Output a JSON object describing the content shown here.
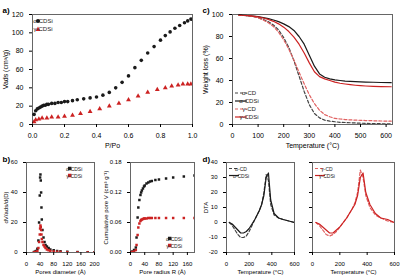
{
  "chart_data": [
    {
      "type": "scatter",
      "title": "a)",
      "xlabel": "P/Po",
      "ylabel": "Vads (cm³/g)",
      "xlim": [
        0,
        1
      ],
      "ylim": [
        0,
        120
      ],
      "xticks": [
        {
          "value": 0,
          "label": "0.0"
        },
        0.2,
        0.4,
        0.6,
        0.8,
        {
          "value": 1,
          "label": "1.0"
        }
      ],
      "yticks": [
        0,
        20,
        40,
        60,
        80,
        100,
        120
      ],
      "legend": "upper left",
      "series": [
        {
          "name": "α-CDSi",
          "color": "#1a1a1a",
          "marker": "circle",
          "x": [
            0.01,
            0.02,
            0.03,
            0.04,
            0.05,
            0.06,
            0.07,
            0.08,
            0.09,
            0.1,
            0.12,
            0.14,
            0.16,
            0.18,
            0.2,
            0.22,
            0.25,
            0.28,
            0.32,
            0.36,
            0.4,
            0.44,
            0.48,
            0.52,
            0.56,
            0.6,
            0.64,
            0.68,
            0.72,
            0.76,
            0.8,
            0.83,
            0.86,
            0.89,
            0.92,
            0.95,
            0.97,
            0.99
          ],
          "values": [
            11,
            15,
            17,
            18,
            19,
            20,
            21,
            21,
            22,
            22,
            23,
            23,
            24,
            24,
            25,
            25,
            26,
            27,
            28,
            29,
            30,
            32,
            35,
            40,
            46,
            53,
            62,
            70,
            78,
            85,
            92,
            97,
            101,
            105,
            108,
            111,
            113,
            115
          ]
        },
        {
          "name": "γ-CDSi",
          "color": "#cc2222",
          "marker": "triangle",
          "x": [
            0.01,
            0.02,
            0.04,
            0.06,
            0.09,
            0.12,
            0.16,
            0.2,
            0.25,
            0.3,
            0.36,
            0.42,
            0.48,
            0.54,
            0.6,
            0.66,
            0.72,
            0.78,
            0.83,
            0.87,
            0.91,
            0.94,
            0.97,
            0.99
          ],
          "values": [
            3,
            5,
            6,
            7,
            7,
            8,
            8,
            9,
            10,
            12,
            14,
            17,
            20,
            23,
            27,
            31,
            35,
            38,
            40,
            42,
            43,
            44,
            44,
            44
          ]
        }
      ]
    },
    {
      "type": "scatter",
      "title": "b)",
      "xlabel": "Pores diameter (Å)",
      "ylabel": "dV/ads/d(D)",
      "xlim": [
        0,
        200
      ],
      "ylim": [
        0,
        60
      ],
      "xticks": [
        0,
        40,
        80,
        120,
        160,
        200
      ],
      "yticks": [
        0,
        20,
        40,
        60
      ],
      "legend": "upper right",
      "series": [
        {
          "name": "α-CDSi",
          "color": "#1a1a1a",
          "marker": "square",
          "x": [
            22,
            25,
            28,
            32,
            35,
            37,
            39,
            40,
            41,
            42,
            43,
            44,
            45,
            47,
            50,
            53,
            56,
            60,
            65,
            70,
            80,
            90,
            100,
            120,
            150,
            180,
            200
          ],
          "values": [
            0.3,
            0.5,
            1.0,
            2.5,
            8,
            20,
            38,
            50,
            52,
            48,
            40,
            30,
            22,
            15,
            10,
            7,
            5,
            4,
            3,
            2,
            1.5,
            1,
            0.8,
            0.5,
            0.3,
            0.2,
            0.1
          ]
        },
        {
          "name": "γ-CDSi",
          "color": "#cc2222",
          "marker": "square",
          "x": [
            22,
            25,
            28,
            32,
            35,
            37,
            39,
            40,
            41,
            42,
            43,
            44,
            45,
            47,
            50,
            53,
            56,
            60,
            65,
            70,
            80,
            90,
            100,
            120,
            150,
            180,
            200
          ],
          "values": [
            0.1,
            0.2,
            0.4,
            1.0,
            3,
            7,
            12,
            16,
            18,
            17,
            15,
            12,
            9,
            7,
            5,
            4,
            3,
            2,
            1.5,
            1,
            0.7,
            0.5,
            0.4,
            0.2,
            0.1,
            0.05,
            0.05
          ]
        }
      ]
    },
    {
      "type": "scatter",
      "xlabel": "Pore radius R (Å)",
      "ylabel": "Cumulative pore V (cm³ g⁻¹)",
      "xlim": [
        0,
        180
      ],
      "ylim": [
        0,
        0.18
      ],
      "xticks": [
        0,
        40,
        80,
        120,
        160
      ],
      "yticks": [
        {
          "value": 0,
          "label": "0.00"
        },
        0.06,
        0.12,
        0.18
      ],
      "legend": "lower right",
      "series": [
        {
          "name": "α-CDSi",
          "color": "#1a1a1a",
          "marker": "square",
          "x": [
            0,
            5,
            10,
            15,
            17,
            20,
            22,
            25,
            28,
            30,
            32,
            35,
            38,
            40,
            45,
            50,
            55,
            60,
            70,
            80,
            100,
            120,
            150,
            180
          ],
          "values": [
            0,
            0.002,
            0.005,
            0.01,
            0.03,
            0.07,
            0.09,
            0.105,
            0.115,
            0.12,
            0.124,
            0.128,
            0.132,
            0.134,
            0.138,
            0.14,
            0.142,
            0.143,
            0.145,
            0.146,
            0.148,
            0.15,
            0.152,
            0.154
          ]
        },
        {
          "name": "γ-CDSi",
          "color": "#cc2222",
          "marker": "square",
          "x": [
            0,
            5,
            10,
            15,
            17,
            20,
            22,
            25,
            28,
            30,
            32,
            35,
            38,
            40,
            45,
            50,
            55,
            60,
            70,
            80,
            100,
            120,
            150,
            180
          ],
          "values": [
            0,
            0.001,
            0.002,
            0.005,
            0.015,
            0.035,
            0.05,
            0.058,
            0.063,
            0.065,
            0.066,
            0.067,
            0.068,
            0.068,
            0.068,
            0.069,
            0.069,
            0.069,
            0.069,
            0.069,
            0.069,
            0.069,
            0.069,
            0.069
          ]
        }
      ]
    },
    {
      "type": "line",
      "title": "c)",
      "xlabel": "Temperature (°C)",
      "ylabel": "Weight loss (%)",
      "xlim": [
        0,
        625
      ],
      "ylim": [
        0,
        100
      ],
      "xticks": [
        0,
        100,
        200,
        300,
        400,
        500,
        600
      ],
      "yticks": [
        0,
        20,
        40,
        60,
        80,
        100
      ],
      "legend": "lower left",
      "x": [
        25,
        40,
        60,
        80,
        100,
        120,
        140,
        160,
        180,
        200,
        220,
        240,
        260,
        280,
        300,
        320,
        340,
        360,
        380,
        400,
        420,
        440,
        460,
        480,
        500,
        520,
        550,
        580,
        620
      ],
      "series": [
        {
          "name": "α-CD",
          "color": "#444444",
          "line_style": "dashed",
          "values": [
            99.5,
            99.2,
            98.8,
            98.2,
            97.0,
            95.5,
            93.5,
            90.5,
            86.0,
            79.0,
            70.0,
            58.0,
            44.0,
            30.0,
            18.0,
            10.0,
            6.0,
            4.0,
            3.0,
            2.5,
            2.0,
            1.8,
            1.6,
            1.4,
            1.2,
            1.0,
            0.8,
            0.7,
            0.6
          ]
        },
        {
          "name": "α-CDSi",
          "color": "#1a1a1a",
          "line_style": "solid",
          "values": [
            99.5,
            99.3,
            99.0,
            98.6,
            98.0,
            97.2,
            96.2,
            95.0,
            93.5,
            91.5,
            89.0,
            85.5,
            80.0,
            73.0,
            63.0,
            53.0,
            46.0,
            43.0,
            41.5,
            40.5,
            40.0,
            39.5,
            39.2,
            39.0,
            38.8,
            38.6,
            38.4,
            38.2,
            38.0
          ]
        },
        {
          "name": "γ-CD",
          "color": "#e06060",
          "line_style": "dashed",
          "values": [
            99.5,
            99.2,
            98.8,
            98.2,
            97.0,
            95.0,
            92.5,
            89.0,
            84.0,
            77.0,
            68.5,
            58.5,
            47.5,
            37.0,
            27.0,
            19.0,
            13.0,
            9.0,
            7.0,
            5.5,
            5.0,
            4.5,
            4.2,
            4.0,
            3.8,
            3.6,
            3.4,
            3.2,
            3.0
          ]
        },
        {
          "name": "γ-CDSi",
          "color": "#cc2222",
          "line_style": "solid",
          "values": [
            99.5,
            99.3,
            99.0,
            98.5,
            97.8,
            96.8,
            95.5,
            93.8,
            91.5,
            88.5,
            84.5,
            79.5,
            73.0,
            65.0,
            56.0,
            48.0,
            43.5,
            41.5,
            40.0,
            38.5,
            37.5,
            36.8,
            36.2,
            35.7,
            35.3,
            35.0,
            34.7,
            34.5,
            34.3
          ]
        }
      ]
    },
    {
      "type": "line",
      "title": "d)",
      "xlabel": "Temperature (°C)",
      "ylabel": "DTA",
      "xlim": [
        0,
        600
      ],
      "ylim": [
        -20,
        40
      ],
      "xticks": [
        0,
        200,
        400,
        600
      ],
      "yticks": [
        -20,
        -10,
        0,
        10,
        20,
        30,
        40
      ],
      "legend": "upper left",
      "x": [
        25,
        50,
        75,
        100,
        125,
        150,
        175,
        200,
        225,
        250,
        270,
        290,
        310,
        330,
        350,
        370,
        390,
        420,
        460,
        500,
        550,
        600
      ],
      "series": [
        {
          "name": "α-CD",
          "color": "#444444",
          "line_style": "dashed",
          "values": [
            0,
            -2,
            -5,
            -8,
            -10,
            -10,
            -9,
            -6,
            -2,
            2,
            5,
            8,
            12,
            20,
            32,
            28,
            12,
            5,
            3,
            2,
            1,
            0
          ]
        },
        {
          "name": "α-CDSi",
          "color": "#1a1a1a",
          "line_style": "solid",
          "values": [
            0,
            -1,
            -3,
            -5,
            -7,
            -7,
            -6,
            -4,
            -1,
            2,
            5,
            8,
            12,
            18,
            30,
            33,
            15,
            6,
            3,
            2,
            1,
            0
          ]
        }
      ]
    },
    {
      "type": "line",
      "xlabel": "Temperature (°C)",
      "xlim": [
        0,
        600
      ],
      "ylim": [
        -20,
        40
      ],
      "xticks": [
        0,
        200,
        400,
        600
      ],
      "yticks": [
        -20,
        -10,
        0,
        10,
        20,
        30,
        40
      ],
      "tick_labels": "x",
      "legend": "upper left",
      "x": [
        25,
        50,
        75,
        100,
        125,
        150,
        175,
        200,
        225,
        250,
        270,
        290,
        310,
        330,
        350,
        370,
        390,
        420,
        460,
        500,
        550,
        600
      ],
      "series": [
        {
          "name": "γ-CD",
          "color": "#e06060",
          "line_style": "dashed",
          "values": [
            0,
            -2,
            -5,
            -8,
            -9,
            -8,
            -6,
            -3,
            0,
            3,
            6,
            9,
            13,
            20,
            35,
            30,
            18,
            10,
            5,
            3,
            1,
            0
          ]
        },
        {
          "name": "γ-CDSi",
          "color": "#cc2222",
          "line_style": "solid",
          "values": [
            0,
            -1,
            -3,
            -5,
            -7,
            -7,
            -5,
            -3,
            0,
            3,
            6,
            9,
            12,
            18,
            30,
            33,
            20,
            12,
            6,
            3,
            2,
            0
          ]
        }
      ]
    }
  ]
}
